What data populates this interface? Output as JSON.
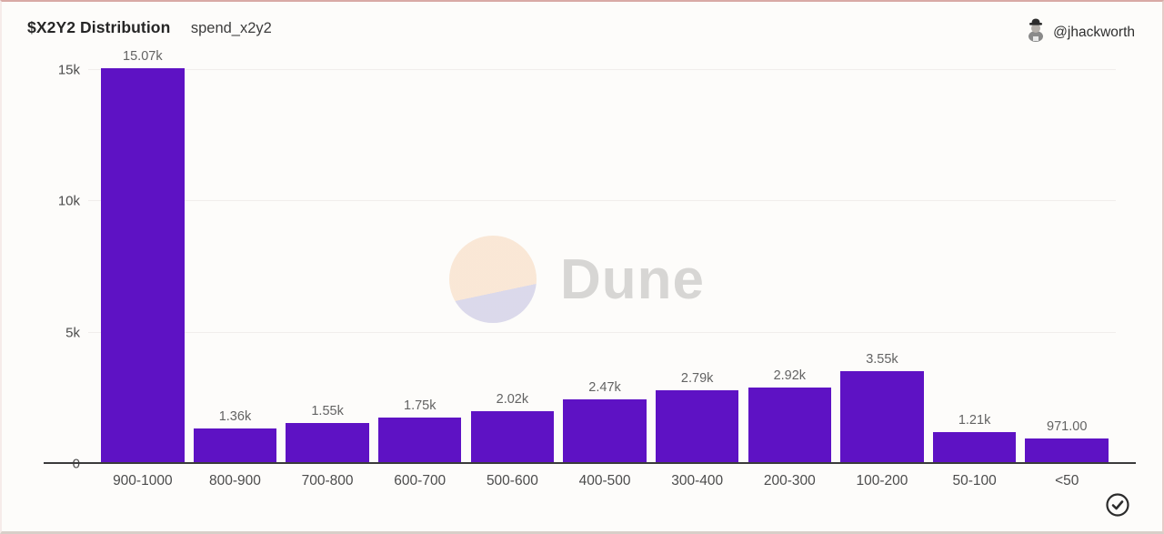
{
  "header": {
    "title": "$X2Y2 Distribution",
    "subtitle": "spend_x2y2",
    "author_handle": "@jhackworth",
    "author_avatar_icon": "man-with-hat-avatar"
  },
  "watermark": {
    "text": "Dune",
    "logo_icon": "dune-logo-circle",
    "circle_top_color": "#f9e5d2",
    "circle_bottom_color": "#d7d5e9",
    "text_color": "#d7d6d4"
  },
  "colors": {
    "bar": "#5e12c4",
    "axis_line": "#3b3b3b",
    "gridline": "#f1eeec",
    "value_label": "#636363",
    "tick_label": "#4c4c4c",
    "card_background": "#fdfcfa"
  },
  "chart_data": {
    "type": "bar",
    "title": "$X2Y2 Distribution",
    "series_name": "spend_x2y2",
    "categories": [
      "900-1000",
      "800-900",
      "700-800",
      "600-700",
      "500-600",
      "400-500",
      "300-400",
      "200-300",
      "100-200",
      "50-100",
      "<50"
    ],
    "values": [
      15070,
      1360,
      1550,
      1750,
      2020,
      2470,
      2790,
      2920,
      3550,
      1210,
      971
    ],
    "value_labels": [
      "15.07k",
      "1.36k",
      "1.55k",
      "1.75k",
      "2.02k",
      "2.47k",
      "2.79k",
      "2.92k",
      "3.55k",
      "1.21k",
      "971.00"
    ],
    "xlabel": "",
    "ylabel": "",
    "ylim": [
      0,
      15000
    ],
    "yticks": [
      {
        "value": 0,
        "label": "0"
      },
      {
        "value": 5000,
        "label": "5k"
      },
      {
        "value": 10000,
        "label": "10k"
      },
      {
        "value": 15000,
        "label": "15k"
      }
    ],
    "grid": "horizontal-faint",
    "legend": "none"
  },
  "footer": {
    "status_icon": "check-circle-icon"
  }
}
